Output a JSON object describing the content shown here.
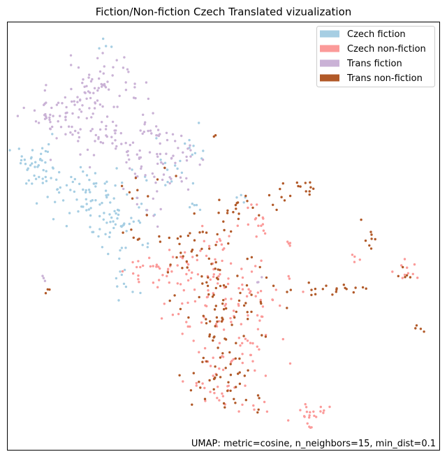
{
  "chart_data": {
    "type": "scatter",
    "title": "Fiction/Non-fiction Czech Translated vizualization",
    "annotation": "UMAP: metric=cosine, n_neighbors=15, min_dist=0.1",
    "axes_ticks_visible": false,
    "grid": false,
    "legend_position": "top-right",
    "series": [
      {
        "name": "Czech fiction",
        "color": "#a6cee3",
        "clusters": [
          {
            "center": [
              0.5,
              9.8
            ],
            "spread": [
              0.25,
              0.1
            ],
            "count": 4
          },
          {
            "center": [
              -2.0,
              5.8
            ],
            "spread": [
              0.55,
              0.35
            ],
            "count": 40
          },
          {
            "center": [
              -0.3,
              4.8
            ],
            "spread": [
              0.8,
              0.45
            ],
            "count": 70
          },
          {
            "center": [
              1.0,
              3.9
            ],
            "spread": [
              0.6,
              0.55
            ],
            "count": 45
          },
          {
            "center": [
              1.2,
              2.0
            ],
            "spread": [
              0.35,
              0.3
            ],
            "count": 10
          },
          {
            "center": [
              2.8,
              6.0
            ],
            "spread": [
              0.6,
              0.6
            ],
            "count": 18
          },
          {
            "center": [
              3.6,
              6.3
            ],
            "spread": [
              0.2,
              0.08
            ],
            "count": 4
          },
          {
            "center": [
              5.2,
              4.8
            ],
            "spread": [
              0.15,
              0.1
            ],
            "count": 4
          },
          {
            "center": [
              3.6,
              4.5
            ],
            "spread": [
              0.2,
              0.1
            ],
            "count": 5
          }
        ]
      },
      {
        "name": "Czech non-fiction",
        "color": "#fb9a99",
        "clusters": [
          {
            "center": [
              2.2,
              2.4
            ],
            "spread": [
              0.6,
              0.35
            ],
            "count": 40
          },
          {
            "center": [
              4.6,
              1.5
            ],
            "spread": [
              1.1,
              0.6
            ],
            "count": 70
          },
          {
            "center": [
              5.0,
              0.0
            ],
            "spread": [
              0.7,
              0.6
            ],
            "count": 40
          },
          {
            "center": [
              4.2,
              -1.3
            ],
            "spread": [
              0.45,
              0.6
            ],
            "count": 25
          },
          {
            "center": [
              5.2,
              -1.9
            ],
            "spread": [
              0.3,
              0.3
            ],
            "count": 8
          },
          {
            "center": [
              7.5,
              -2.3
            ],
            "spread": [
              0.3,
              0.18
            ],
            "count": 22
          },
          {
            "center": [
              5.7,
              3.9
            ],
            "spread": [
              0.25,
              0.2
            ],
            "count": 10
          },
          {
            "center": [
              3.9,
              3.0
            ],
            "spread": [
              0.6,
              0.5
            ],
            "count": 20
          },
          {
            "center": [
              6.8,
              3.3
            ],
            "spread": [
              0.1,
              0.08
            ],
            "count": 4
          },
          {
            "center": [
              10.9,
              2.3
            ],
            "spread": [
              0.25,
              0.15
            ],
            "count": 10
          },
          {
            "center": [
              9.1,
              2.7
            ],
            "spread": [
              0.15,
              0.2
            ],
            "count": 4
          },
          {
            "center": [
              5.4,
              4.5
            ],
            "spread": [
              0.1,
              0.1
            ],
            "count": 3
          }
        ]
      },
      {
        "name": "Trans fiction",
        "color": "#cab2d6",
        "clusters": [
          {
            "center": [
              -0.2,
              8.4
            ],
            "spread": [
              0.65,
              0.45
            ],
            "count": 45
          },
          {
            "center": [
              0.9,
              8.5
            ],
            "spread": [
              0.35,
              0.45
            ],
            "count": 15
          },
          {
            "center": [
              -0.8,
              7.5
            ],
            "spread": [
              0.6,
              0.5
            ],
            "count": 40
          },
          {
            "center": [
              0.6,
              6.9
            ],
            "spread": [
              0.75,
              0.45
            ],
            "count": 45
          },
          {
            "center": [
              -1.9,
              7.2
            ],
            "spread": [
              0.35,
              0.3
            ],
            "count": 15
          },
          {
            "center": [
              2.2,
              6.6
            ],
            "spread": [
              0.55,
              0.5
            ],
            "count": 30
          },
          {
            "center": [
              1.8,
              5.5
            ],
            "spread": [
              0.7,
              0.4
            ],
            "count": 40
          },
          {
            "center": [
              3.2,
              6.2
            ],
            "spread": [
              0.35,
              0.2
            ],
            "count": 8
          },
          {
            "center": [
              2.0,
              4.2
            ],
            "spread": [
              0.2,
              0.15
            ],
            "count": 5
          },
          {
            "center": [
              5.8,
              2.1
            ],
            "spread": [
              0.1,
              0.1
            ],
            "count": 3
          },
          {
            "center": [
              -1.7,
              2.1
            ],
            "spread": [
              0.08,
              0.15
            ],
            "count": 3
          }
        ]
      },
      {
        "name": "Trans non-fiction",
        "color": "#b15928",
        "clusters": [
          {
            "center": [
              3.4,
              3.3
            ],
            "spread": [
              0.8,
              0.45
            ],
            "count": 25
          },
          {
            "center": [
              4.3,
              2.2
            ],
            "spread": [
              0.8,
              0.45
            ],
            "count": 35
          },
          {
            "center": [
              4.8,
              1.0
            ],
            "spread": [
              0.9,
              0.5
            ],
            "count": 35
          },
          {
            "center": [
              4.4,
              0.0
            ],
            "spread": [
              0.6,
              0.6
            ],
            "count": 25
          },
          {
            "center": [
              4.6,
              -1.5
            ],
            "spread": [
              0.6,
              0.6
            ],
            "count": 20
          },
          {
            "center": [
              5.2,
              4.4
            ],
            "spread": [
              0.5,
              0.3
            ],
            "count": 15
          },
          {
            "center": [
              6.4,
              4.8
            ],
            "spread": [
              0.25,
              0.25
            ],
            "count": 8
          },
          {
            "center": [
              7.4,
              5.1
            ],
            "spread": [
              0.25,
              0.12
            ],
            "count": 10
          },
          {
            "center": [
              7.6,
              1.8
            ],
            "spread": [
              0.35,
              0.12
            ],
            "count": 10
          },
          {
            "center": [
              8.7,
              1.8
            ],
            "spread": [
              0.5,
              0.1
            ],
            "count": 10
          },
          {
            "center": [
              9.6,
              3.5
            ],
            "spread": [
              0.15,
              0.25
            ],
            "count": 8
          },
          {
            "center": [
              10.9,
              2.2
            ],
            "spread": [
              0.15,
              0.1
            ],
            "count": 5
          },
          {
            "center": [
              11.2,
              0.5
            ],
            "spread": [
              0.15,
              0.08
            ],
            "count": 4
          },
          {
            "center": [
              5.6,
              -1.9
            ],
            "spread": [
              0.2,
              0.2
            ],
            "count": 5
          },
          {
            "center": [
              1.8,
              5.2
            ],
            "spread": [
              0.5,
              0.3
            ],
            "count": 10
          },
          {
            "center": [
              -1.6,
              1.7
            ],
            "spread": [
              0.05,
              0.08
            ],
            "count": 3
          },
          {
            "center": [
              1.5,
              3.4
            ],
            "spread": [
              0.3,
              0.2
            ],
            "count": 5
          },
          {
            "center": [
              4.2,
              6.8
            ],
            "spread": [
              0.08,
              0.08
            ],
            "count": 2
          },
          {
            "center": [
              3.6,
              -1.5
            ],
            "spread": [
              0.15,
              0.3
            ],
            "count": 5
          }
        ]
      }
    ]
  }
}
